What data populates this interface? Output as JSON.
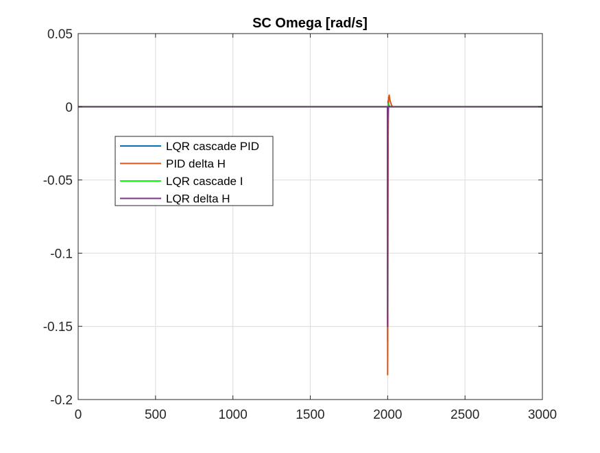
{
  "chart_data": {
    "type": "line",
    "title": "SC Omega [rad/s]",
    "xlabel": "",
    "ylabel": "",
    "xlim": [
      0,
      3000
    ],
    "ylim": [
      -0.2,
      0.05
    ],
    "xticks": [
      0,
      500,
      1000,
      1500,
      2000,
      2500,
      3000
    ],
    "xtick_labels": [
      "0",
      "500",
      "1000",
      "1500",
      "2000",
      "2500",
      "3000"
    ],
    "yticks": [
      0.05,
      0,
      -0.05,
      -0.1,
      -0.15,
      -0.2
    ],
    "ytick_labels": [
      "0.05",
      "0",
      "-0.05",
      "-0.1",
      "-0.15",
      "-0.2"
    ],
    "grid": true,
    "legend_position": "upper-left",
    "series": [
      {
        "name": "LQR cascade PID",
        "color": "#0072BD",
        "x": [
          0,
          1999,
          2000,
          2001,
          2003,
          2006,
          2010,
          2020,
          3000
        ],
        "y": [
          0,
          0,
          -0.16,
          -0.01,
          0.004,
          0.002,
          0.0005,
          0,
          0
        ]
      },
      {
        "name": "PID delta H",
        "color": "#D95319",
        "x": [
          0,
          1999,
          2000,
          2001,
          2003,
          2006,
          2010,
          2016,
          2025,
          2035,
          3000
        ],
        "y": [
          0,
          0,
          -0.183,
          -0.145,
          -0.02,
          0.006,
          0.008,
          0.004,
          0.001,
          0,
          0
        ]
      },
      {
        "name": "LQR cascade I",
        "color": "#00FF00",
        "x": [
          0,
          1999,
          2000,
          2001,
          2004,
          2010,
          3000
        ],
        "y": [
          0,
          0,
          -0.14,
          -0.005,
          0.002,
          0,
          0
        ]
      },
      {
        "name": "LQR delta H",
        "color": "#7E2F8E",
        "x": [
          0,
          1999,
          2000,
          2001,
          2003,
          2008,
          2015,
          3000
        ],
        "y": [
          0,
          0,
          -0.15,
          -0.01,
          -0.002,
          0.0005,
          0,
          0
        ]
      }
    ]
  }
}
